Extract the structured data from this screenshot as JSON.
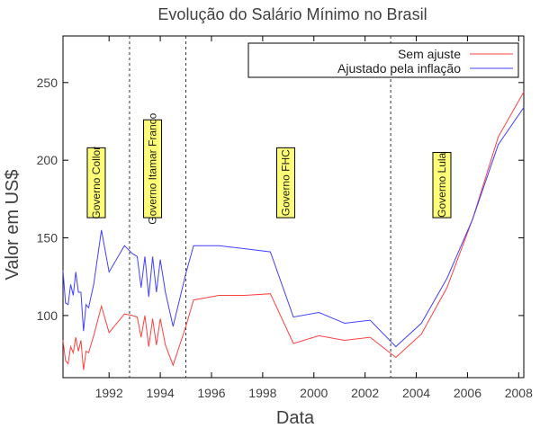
{
  "chart_data": {
    "type": "line",
    "title": "Evolução do Salário Mínimo no Brasil",
    "xlabel": "Data",
    "ylabel": "Valor em US$",
    "xlim": [
      1990.2,
      2008.2
    ],
    "ylim": [
      60,
      280
    ],
    "xticks": [
      1992,
      1994,
      1996,
      1998,
      2000,
      2002,
      2004,
      2006,
      2008
    ],
    "yticks": [
      100,
      150,
      200,
      250
    ],
    "legend_position": "top-right",
    "colors": {
      "sem_ajuste": "#ff4040",
      "ajustado": "#4040ff",
      "gov_box_fill": "#ffff77",
      "vline": "#333333"
    },
    "series": [
      {
        "name": "Sem ajuste",
        "color": "#ff4040",
        "x": [
          1990.2,
          1990.3,
          1990.4,
          1990.5,
          1990.6,
          1990.7,
          1990.8,
          1990.9,
          1991.0,
          1991.1,
          1991.2,
          1991.4,
          1991.7,
          1992.0,
          1992.6,
          1992.9,
          1993.1,
          1993.25,
          1993.4,
          1993.55,
          1993.7,
          1993.85,
          1994.0,
          1994.2,
          1994.5,
          1995.0,
          1995.3,
          1996.3,
          1997.3,
          1998.3,
          1999.2,
          2000.2,
          2001.2,
          2002.2,
          2003.2,
          2004.2,
          2005.2,
          2006.2,
          2007.2,
          2008.2
        ],
        "values": [
          84,
          71,
          69,
          80,
          76,
          86,
          77,
          84,
          65,
          77,
          76,
          87,
          106,
          89,
          101,
          100,
          99,
          86,
          100,
          80,
          98,
          81,
          98,
          81,
          68,
          93,
          110,
          113,
          113,
          114,
          82,
          87,
          84,
          86,
          73,
          88,
          118,
          162,
          215,
          244
        ]
      },
      {
        "name": "Ajustado pela inflação",
        "color": "#4040ff",
        "x": [
          1990.2,
          1990.3,
          1990.4,
          1990.5,
          1990.6,
          1990.7,
          1990.8,
          1990.9,
          1991.0,
          1991.1,
          1991.2,
          1991.4,
          1991.7,
          1992.0,
          1992.6,
          1992.9,
          1993.1,
          1993.25,
          1993.4,
          1993.55,
          1993.7,
          1993.85,
          1994.0,
          1994.2,
          1994.5,
          1995.0,
          1995.3,
          1996.3,
          1997.3,
          1998.3,
          1999.2,
          2000.2,
          2001.2,
          2002.2,
          2003.2,
          2004.2,
          2005.2,
          2006.2,
          2007.2,
          2008.2
        ],
        "values": [
          129,
          108,
          107,
          120,
          113,
          128,
          115,
          115,
          90,
          107,
          105,
          120,
          155,
          128,
          145,
          140,
          138,
          118,
          138,
          112,
          138,
          115,
          136,
          115,
          93,
          127,
          145,
          145,
          143,
          141,
          99,
          102,
          95,
          97,
          80,
          95,
          124,
          162,
          210,
          234
        ]
      }
    ],
    "governments": [
      {
        "label": "Governo Collor",
        "x": 1991.5,
        "y_top": 208,
        "y_bottom": 163
      },
      {
        "label": "Governo Itamar Franco",
        "x": 1993.7,
        "y_top": 226,
        "y_bottom": 163
      },
      {
        "label": "Governo FHC",
        "x": 1998.9,
        "y_top": 208,
        "y_bottom": 163
      },
      {
        "label": "Governo Lula",
        "x": 2005.0,
        "y_top": 205,
        "y_bottom": 163
      }
    ],
    "vlines": [
      1992.8,
      1995.0,
      2003.0
    ]
  }
}
